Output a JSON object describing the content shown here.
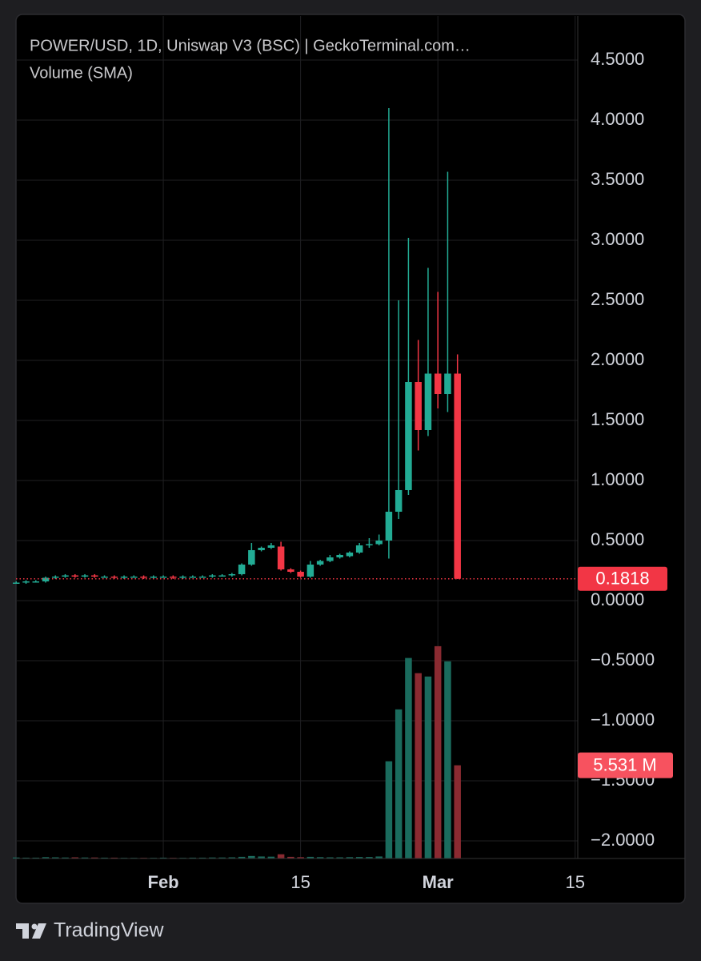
{
  "chart_data": {
    "type": "candlestick",
    "title": "POWER/USD, 1D, Uniswap V3 (BSC) | GeckoTerminal.com…",
    "categories": [
      null,
      null,
      null,
      null,
      null,
      null,
      null,
      null,
      null,
      null,
      null,
      null,
      null,
      null,
      null,
      "Feb",
      null,
      null,
      null,
      null,
      null,
      null,
      null,
      null,
      null,
      null,
      null,
      null,
      null,
      "15",
      null,
      null,
      null,
      null,
      null,
      null,
      null,
      null,
      null,
      null,
      null,
      null,
      null,
      "Mar",
      null,
      null,
      null,
      null,
      null,
      null,
      null,
      null,
      null,
      null,
      null,
      null,
      null,
      "15"
    ],
    "open": [
      0.15,
      0.15,
      0.16,
      0.16,
      0.19,
      0.2,
      0.21,
      0.2,
      0.21,
      0.2,
      0.2,
      0.19,
      0.2,
      0.2,
      0.19,
      0.2,
      0.2,
      0.19,
      0.2,
      0.2,
      0.2,
      0.21,
      0.21,
      0.22,
      0.3,
      0.42,
      0.44,
      0.45,
      0.26,
      0.24,
      0.2,
      0.3,
      0.33,
      0.36,
      0.37,
      0.4,
      0.46,
      0.47,
      0.5,
      0.74,
      0.92,
      1.82,
      1.42,
      1.89,
      1.72,
      1.89,
      null,
      null,
      null,
      null,
      null,
      null,
      null,
      null,
      null,
      null,
      null,
      null
    ],
    "high": [
      0.16,
      0.17,
      0.17,
      0.2,
      0.21,
      0.22,
      0.22,
      0.22,
      0.22,
      0.21,
      0.21,
      0.21,
      0.21,
      0.21,
      0.21,
      0.21,
      0.21,
      0.21,
      0.21,
      0.21,
      0.22,
      0.22,
      0.23,
      0.31,
      0.48,
      0.45,
      0.48,
      0.49,
      0.27,
      0.25,
      0.33,
      0.34,
      0.38,
      0.39,
      0.41,
      0.48,
      0.52,
      0.55,
      4.1,
      2.5,
      3.02,
      2.17,
      2.77,
      2.57,
      3.57,
      2.05,
      null,
      null,
      null,
      null,
      null,
      null,
      null,
      null,
      null,
      null,
      null,
      null
    ],
    "low": [
      0.14,
      0.14,
      0.15,
      0.15,
      0.18,
      0.19,
      0.19,
      0.19,
      0.19,
      0.19,
      0.18,
      0.18,
      0.19,
      0.18,
      0.18,
      0.19,
      0.18,
      0.18,
      0.19,
      0.19,
      0.19,
      0.2,
      0.2,
      0.21,
      0.29,
      0.41,
      0.43,
      0.25,
      0.23,
      0.19,
      0.19,
      0.29,
      0.32,
      0.35,
      0.36,
      0.39,
      0.44,
      0.46,
      0.35,
      0.68,
      0.88,
      1.25,
      1.37,
      1.6,
      1.57,
      0.18,
      null,
      null,
      null,
      null,
      null,
      null,
      null,
      null,
      null,
      null,
      null,
      null
    ],
    "close": [
      0.15,
      0.16,
      0.16,
      0.19,
      0.2,
      0.21,
      0.2,
      0.21,
      0.2,
      0.2,
      0.19,
      0.2,
      0.2,
      0.19,
      0.2,
      0.2,
      0.19,
      0.2,
      0.2,
      0.2,
      0.21,
      0.21,
      0.22,
      0.3,
      0.42,
      0.44,
      0.46,
      0.26,
      0.24,
      0.2,
      0.3,
      0.33,
      0.36,
      0.38,
      0.4,
      0.46,
      0.47,
      0.5,
      0.74,
      0.92,
      1.82,
      1.42,
      1.89,
      1.72,
      1.89,
      0.1818,
      null,
      null,
      null,
      null,
      null,
      null,
      null,
      null,
      null,
      null,
      null,
      null
    ],
    "up_color": "#22ab94",
    "down_color": "#f23645",
    "ylim": [
      -2.147,
      4.867
    ],
    "yticks": [
      {
        "value": 4.5,
        "label": "4.5000"
      },
      {
        "value": 4,
        "label": "4.0000"
      },
      {
        "value": 3.5,
        "label": "3.5000"
      },
      {
        "value": 3,
        "label": "3.0000"
      },
      {
        "value": 2.5,
        "label": "2.5000"
      },
      {
        "value": 2,
        "label": "2.0000"
      },
      {
        "value": 1.5,
        "label": "1.5000"
      },
      {
        "value": 1,
        "label": "1.0000"
      },
      {
        "value": 0.5,
        "label": "0.5000"
      },
      {
        "value": 0,
        "label": "0.0000"
      },
      {
        "value": -0.5,
        "label": "−0.5000"
      },
      {
        "value": -1,
        "label": "−1.0000"
      },
      {
        "value": -1.5,
        "label": "−1.5000"
      },
      {
        "value": -2,
        "label": "−2.0000"
      }
    ],
    "grid": true,
    "volume": {
      "name": "Volume (SMA)",
      "axis": "y2",
      "up_color": "#1a6b5d",
      "down_color": "#8a2a31",
      "values": [
        60000,
        50000,
        50000,
        80000,
        70000,
        60000,
        70000,
        60000,
        60000,
        50000,
        50000,
        40000,
        40000,
        40000,
        40000,
        50000,
        40000,
        40000,
        50000,
        50000,
        60000,
        60000,
        70000,
        100000,
        150000,
        120000,
        110000,
        250000,
        100000,
        80000,
        100000,
        80000,
        70000,
        70000,
        80000,
        90000,
        90000,
        120000,
        5770000,
        8850000,
        11900000,
        11000000,
        10800000,
        12600000,
        11700000,
        5531000,
        null,
        null,
        null,
        null,
        null,
        null,
        null,
        null,
        null,
        null,
        null,
        null
      ],
      "value_labels": [
        null,
        null,
        null,
        null,
        null,
        null,
        null,
        null,
        null,
        null,
        null,
        null,
        null,
        null,
        null,
        null,
        null,
        null,
        null,
        null,
        null,
        null,
        null,
        null,
        null,
        null,
        null,
        null,
        null,
        null,
        null,
        null,
        null,
        null,
        null,
        null,
        null,
        null,
        null,
        null,
        null,
        null,
        null,
        null,
        null,
        "5.531 M",
        null,
        null,
        null,
        null,
        null,
        null,
        null,
        null,
        null,
        null,
        null,
        null
      ]
    },
    "y2lim": [
      0,
      50000000
    ]
  },
  "footer": {
    "brand": "TradingView"
  }
}
